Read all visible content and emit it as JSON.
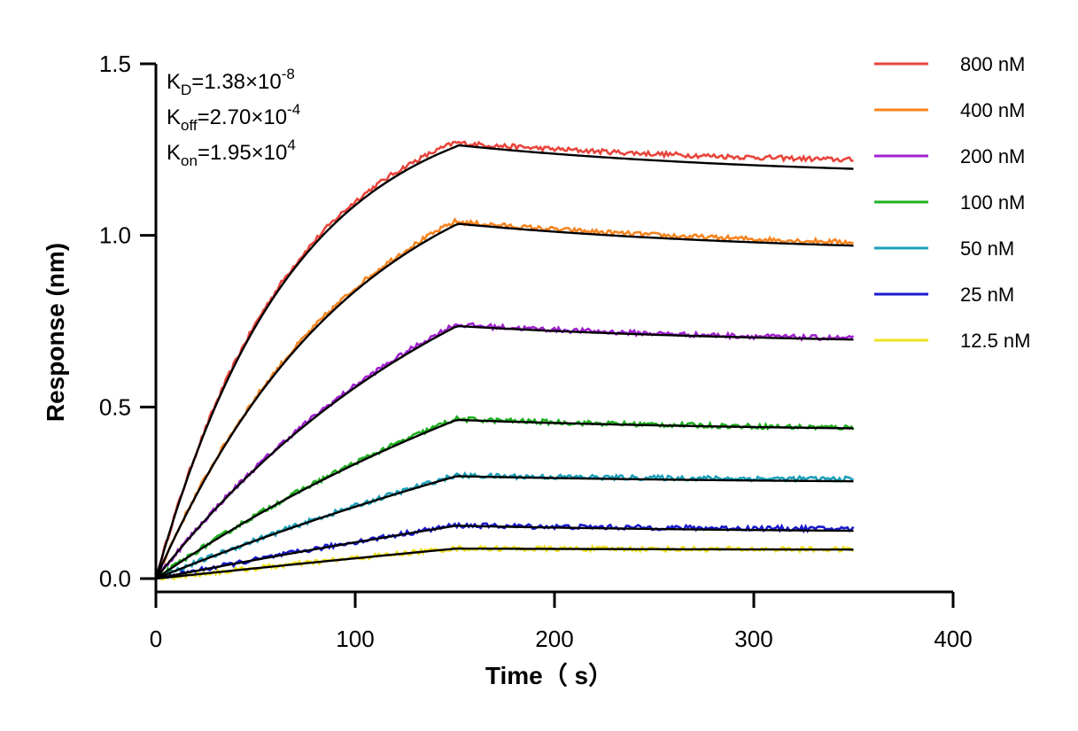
{
  "chart_data": {
    "type": "line",
    "title": "",
    "xlabel": "Time（ s）",
    "ylabel": "Response (nm)",
    "xlim": [
      0,
      400
    ],
    "ylim": [
      0,
      1.5
    ],
    "xticks": [
      0,
      100,
      200,
      300,
      400
    ],
    "yticks": [
      0.0,
      0.5,
      1.0,
      1.5
    ],
    "xtick_labels": [
      "0",
      "100",
      "200",
      "300",
      "400"
    ],
    "ytick_labels": [
      "0.0",
      "0.5",
      "1.0",
      "1.5"
    ],
    "grid": false,
    "legend_position": "top-right",
    "association_end": 150,
    "x_end": 350,
    "annotations": [
      {
        "main": "K",
        "sub": "D",
        "value": "=1.38×10",
        "exp": "-8"
      },
      {
        "main": "K",
        "sub": "off",
        "value": "=2.70×10",
        "exp": "-4"
      },
      {
        "main": "K",
        "sub": "on",
        "value": "=1.95×10",
        "exp": "4"
      }
    ],
    "fit_color": "#000000",
    "series": [
      {
        "name": "800 nM",
        "color": "#e8453c",
        "peak": 1.27,
        "end": 1.22,
        "fit_end": 1.2,
        "curv": 2.2
      },
      {
        "name": "400 nM",
        "color": "#f5841f",
        "peak": 1.04,
        "end": 0.98,
        "fit_end": 0.975,
        "curv": 1.5
      },
      {
        "name": "200 nM",
        "color": "#a020d0",
        "peak": 0.74,
        "end": 0.7,
        "fit_end": 0.7,
        "curv": 0.9
      },
      {
        "name": "100 nM",
        "color": "#20b020",
        "peak": 0.465,
        "end": 0.44,
        "fit_end": 0.44,
        "curv": 0.55
      },
      {
        "name": "50 nM",
        "color": "#1a9fb8",
        "peak": 0.3,
        "end": 0.29,
        "fit_end": 0.285,
        "curv": 0.35
      },
      {
        "name": "25 nM",
        "color": "#1a1ad0",
        "peak": 0.155,
        "end": 0.145,
        "fit_end": 0.14,
        "curv": 0.2
      },
      {
        "name": "12.5 nM",
        "color": "#f0e020",
        "peak": 0.088,
        "end": 0.085,
        "fit_end": 0.085,
        "curv": 0.1
      }
    ]
  }
}
